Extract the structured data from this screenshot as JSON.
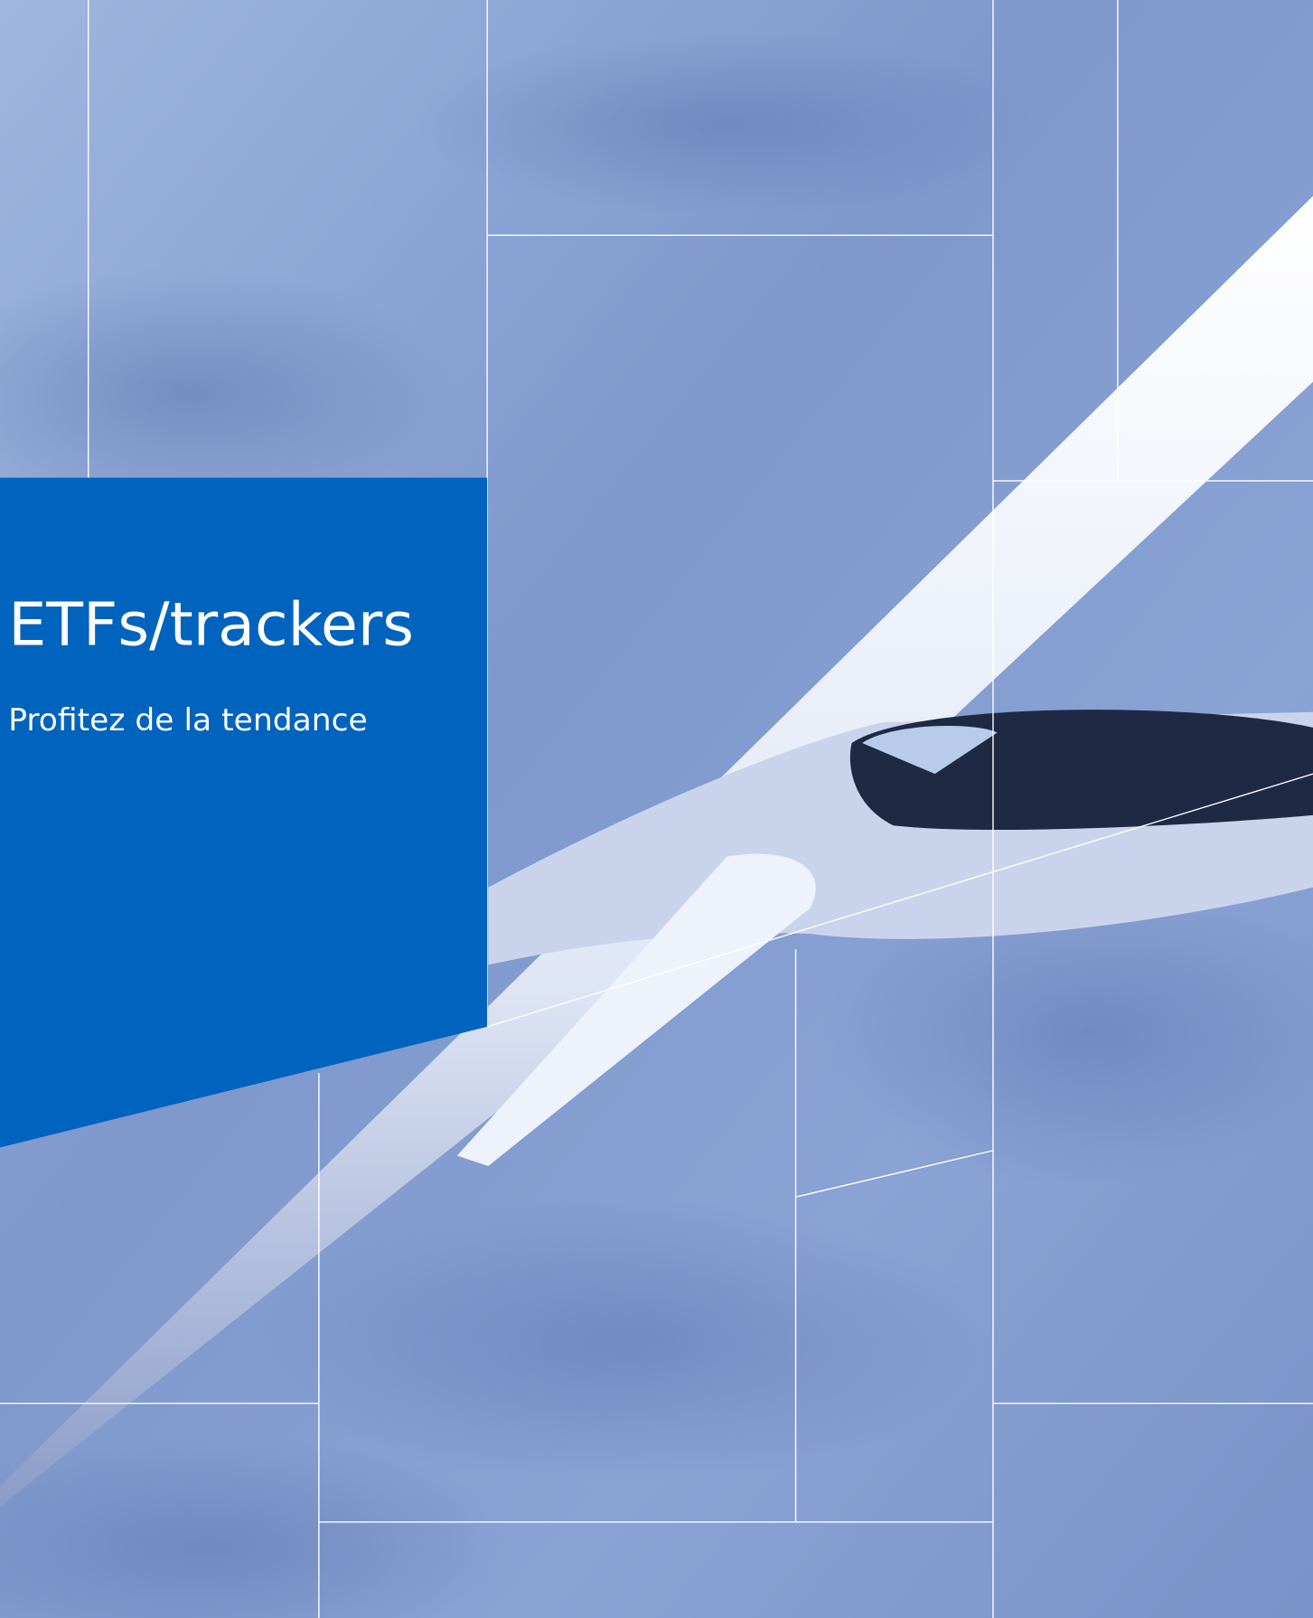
{
  "cover": {
    "title": "ETFs/trackers",
    "subtitle": "Profitez de la tendance"
  }
}
